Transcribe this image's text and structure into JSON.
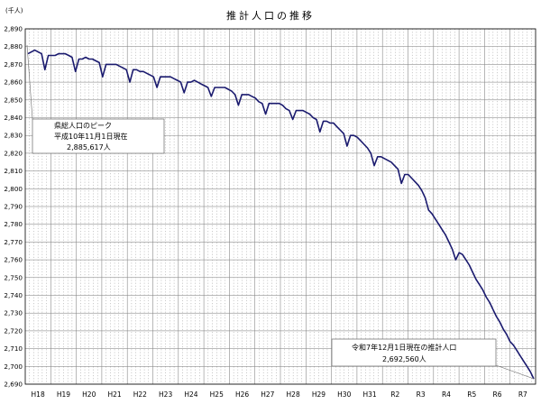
{
  "chart_data": {
    "type": "line",
    "title": "推計人口の推移",
    "unit_label": "(千人)",
    "xlabel": "",
    "ylabel": "",
    "ylim": [
      2690,
      2890
    ],
    "y_ticks": [
      "2,890",
      "2,880",
      "2,870",
      "2,860",
      "2,850",
      "2,840",
      "2,830",
      "2,820",
      "2,810",
      "2,800",
      "2,790",
      "2,780",
      "2,770",
      "2,760",
      "2,750",
      "2,740",
      "2,730",
      "2,720",
      "2,710",
      "2,700",
      "2,690"
    ],
    "x_ticks": [
      "H18",
      "H19",
      "H20",
      "H21",
      "H22",
      "H23",
      "H24",
      "H25",
      "H26",
      "H27",
      "H28",
      "H29",
      "H30",
      "H31",
      "R2",
      "R3",
      "R4",
      "R5",
      "R6",
      "R7"
    ],
    "grid": "major horizontal solid, minor monthly dashed",
    "line_color": "#1a1a6e",
    "series": [
      {
        "values": [
          2876,
          2877,
          2878,
          2877,
          2876,
          2867,
          2875,
          2875,
          2875,
          2876,
          2876,
          2876,
          2875,
          2874,
          2866,
          2873,
          2873,
          2874,
          2873,
          2873,
          2872,
          2871,
          2863,
          2870,
          2870,
          2870,
          2870,
          2869,
          2868,
          2867,
          2860,
          2867,
          2867,
          2866,
          2866,
          2865,
          2864,
          2863,
          2857,
          2863,
          2863,
          2863,
          2863,
          2862,
          2861,
          2860,
          2854,
          2860,
          2860,
          2861,
          2860,
          2859,
          2858,
          2857,
          2852,
          2857,
          2857,
          2857,
          2857,
          2856,
          2855,
          2853,
          2847,
          2853,
          2853,
          2853,
          2852,
          2851,
          2849,
          2848,
          2842,
          2848,
          2848,
          2848,
          2848,
          2847,
          2845,
          2844,
          2839,
          2844,
          2844,
          2844,
          2843,
          2842,
          2840,
          2839,
          2832,
          2838,
          2838,
          2837,
          2837,
          2835,
          2833,
          2831,
          2824,
          2830,
          2830,
          2829,
          2827,
          2825,
          2823,
          2820,
          2813,
          2818,
          2818,
          2817,
          2816,
          2815,
          2813,
          2811,
          2803,
          2808,
          2808,
          2806,
          2804,
          2802,
          2799,
          2795,
          2788,
          2786,
          2783,
          2780,
          2777,
          2774,
          2770,
          2766,
          2760,
          2764,
          2763,
          2760,
          2757,
          2753,
          2749,
          2746,
          2743,
          2739,
          2736,
          2732,
          2728,
          2725,
          2721,
          2718,
          2714,
          2712,
          2709,
          2706,
          2703,
          2700,
          2697,
          2693
        ]
      }
    ],
    "annotations": [
      {
        "lines": [
          "県総人口のピーク",
          "平成10年11月1日現在",
          "2,885,617人"
        ]
      },
      {
        "lines": [
          "令和7年12月1日現在の推計人口",
          "2,692,560人"
        ]
      }
    ]
  }
}
